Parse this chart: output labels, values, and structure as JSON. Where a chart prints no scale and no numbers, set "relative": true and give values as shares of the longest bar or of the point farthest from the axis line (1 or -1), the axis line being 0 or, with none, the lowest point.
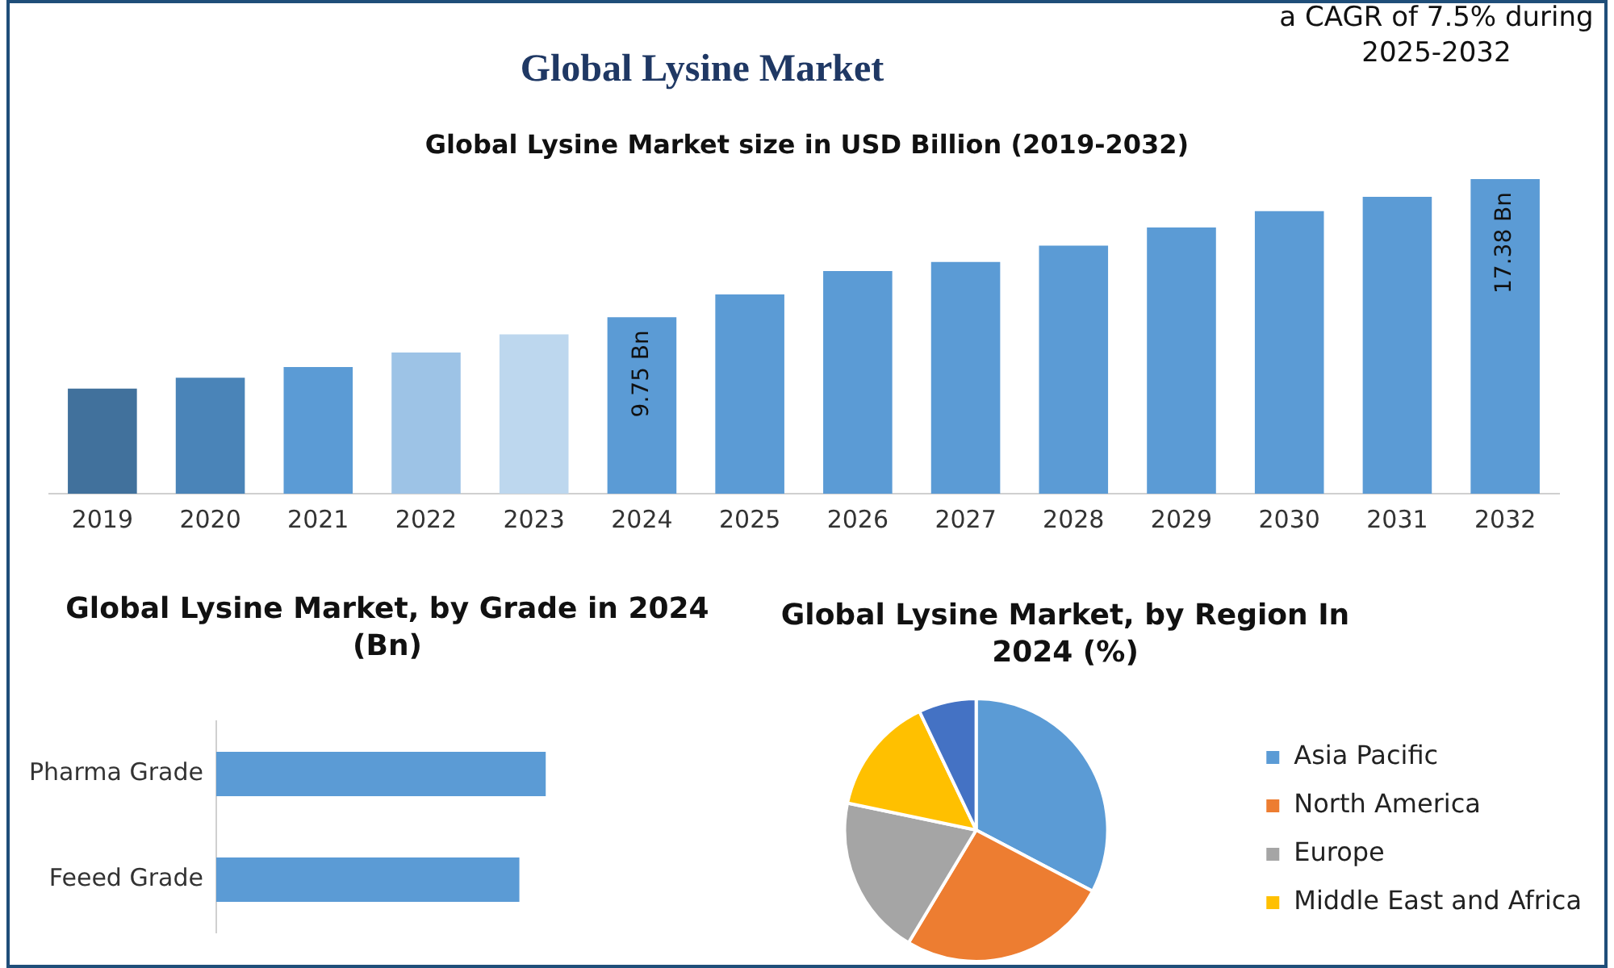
{
  "chart_data": [
    {
      "type": "bar",
      "title": "Global Lysine Market",
      "subtitle": "Global Lysine Market size in USD Billion (2019-2032)",
      "annotations": [
        "a CAGR of 7.5% during 2025-2032"
      ],
      "categories": [
        "2019",
        "2020",
        "2021",
        "2022",
        "2023",
        "2024",
        "2025",
        "2026",
        "2027",
        "2028",
        "2029",
        "2030",
        "2031",
        "2032"
      ],
      "values": [
        5.8,
        6.4,
        7.0,
        7.8,
        8.8,
        9.75,
        11.0,
        12.3,
        12.8,
        13.7,
        14.7,
        15.6,
        16.4,
        17.38
      ],
      "colors": [
        "#41719c",
        "#4a84b8",
        "#5b9bd5",
        "#9dc3e6",
        "#bdd7ee",
        "#5b9bd5",
        "#5b9bd5",
        "#5b9bd5",
        "#5b9bd5",
        "#5b9bd5",
        "#5b9bd5",
        "#5b9bd5",
        "#5b9bd5",
        "#5b9bd5"
      ],
      "value_labels": [
        null,
        null,
        null,
        null,
        null,
        "9.75 Bn",
        null,
        null,
        null,
        null,
        null,
        null,
        null,
        "17.38 Bn"
      ],
      "tick_labels": "x"
    },
    {
      "type": "bar",
      "orientation": "horizontal",
      "relative": true,
      "title": "Global Lysine Market, by Grade in 2024 (Bn)",
      "categories": [
        "Pharma Grade",
        "Feeed Grade"
      ],
      "values": [
        1,
        0.92
      ],
      "colors": [
        "#5b9bd5",
        "#5b9bd5"
      ],
      "tick_labels": "y"
    },
    {
      "type": "pie",
      "title": "Global Lysine Market, by Region In 2024 (%)",
      "categories": [
        "Asia Pacific",
        "North America",
        "Europe",
        "Middle East and Africa",
        null
      ],
      "values": [
        32.7,
        25.9,
        19.7,
        14.6,
        7.1
      ],
      "colors": [
        "#5b9bd5",
        "#ed7d31",
        "#a5a5a5",
        "#ffc000",
        "#4472c4"
      ],
      "legend": "right"
    }
  ]
}
